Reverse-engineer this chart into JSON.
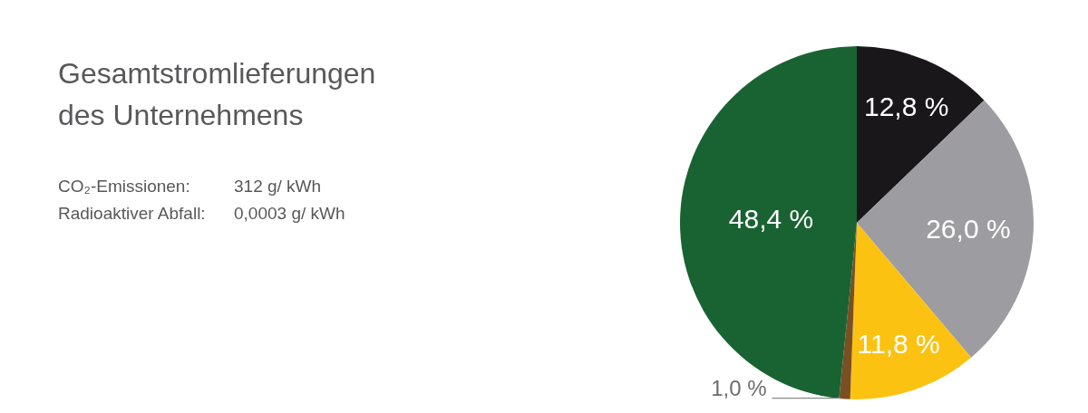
{
  "chart_data": {
    "type": "pie",
    "title": "Gesamtstromlieferungen des Unternehmens",
    "annotations": [
      "CO₂-Emissionen:",
      "312 g/ kWh",
      "Radioaktiver Abfall:",
      "0,0003 g/ kWh"
    ],
    "categories": [
      null,
      null,
      null,
      null,
      null
    ],
    "values": [
      12.8,
      26.0,
      11.8,
      1.0,
      48.4
    ],
    "value_labels": [
      "12,8 %",
      "26,0 %",
      "11,8 %",
      "1,0 %",
      "48,4 %"
    ],
    "colors": [
      "#1a171b",
      "#9d9ca1",
      "#fcc211",
      "#7a4f22",
      "#196332"
    ]
  }
}
